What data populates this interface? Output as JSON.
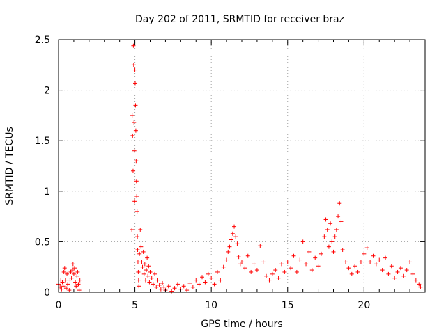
{
  "chart_data": {
    "type": "scatter",
    "title": "Day 202 of 2011, SRMTID for receiver braz",
    "xlabel": "GPS time / hours",
    "ylabel": "SRMTID / TECUs",
    "xlim": [
      0,
      24
    ],
    "ylim": [
      0,
      2.5
    ],
    "xticks": [
      0,
      5,
      10,
      15,
      20
    ],
    "yticks": [
      0,
      0.5,
      1,
      1.5,
      2,
      2.5
    ],
    "xtick_labels": [
      "0",
      "5",
      "10",
      "15",
      "20"
    ],
    "ytick_labels": [
      "0",
      "0.5",
      "1",
      "1.5",
      "2",
      "2.5"
    ],
    "grid": true,
    "marker": "plus",
    "color": "#ff0000",
    "series": [
      {
        "name": "SRMTID",
        "points": [
          [
            0.0,
            0.08
          ],
          [
            0.1,
            0.05
          ],
          [
            0.15,
            0.12
          ],
          [
            0.2,
            0.03
          ],
          [
            0.25,
            0.1
          ],
          [
            0.3,
            0.06
          ],
          [
            0.35,
            0.2
          ],
          [
            0.4,
            0.24
          ],
          [
            0.45,
            0.12
          ],
          [
            0.5,
            0.04
          ],
          [
            0.55,
            0.18
          ],
          [
            0.6,
            0.08
          ],
          [
            0.7,
            0.02
          ],
          [
            0.75,
            0.12
          ],
          [
            0.8,
            0.2
          ],
          [
            0.85,
            0.14
          ],
          [
            0.9,
            0.22
          ],
          [
            0.95,
            0.28
          ],
          [
            1.0,
            0.18
          ],
          [
            1.05,
            0.24
          ],
          [
            1.1,
            0.1
          ],
          [
            1.15,
            0.06
          ],
          [
            1.2,
            0.16
          ],
          [
            1.25,
            0.2
          ],
          [
            1.3,
            0.08
          ],
          [
            1.35,
            0.02
          ],
          [
            1.4,
            0.12
          ],
          [
            4.8,
            0.62
          ],
          [
            4.82,
            1.75
          ],
          [
            4.85,
            1.55
          ],
          [
            4.88,
            1.2
          ],
          [
            4.9,
            2.44
          ],
          [
            4.92,
            2.25
          ],
          [
            4.94,
            1.68
          ],
          [
            4.96,
            1.4
          ],
          [
            4.98,
            0.9
          ],
          [
            5.0,
            2.2
          ],
          [
            5.02,
            2.07
          ],
          [
            5.04,
            1.85
          ],
          [
            5.06,
            1.6
          ],
          [
            5.08,
            1.3
          ],
          [
            5.1,
            1.1
          ],
          [
            5.12,
            0.95
          ],
          [
            5.14,
            0.8
          ],
          [
            5.16,
            0.55
          ],
          [
            5.18,
            0.42
          ],
          [
            5.2,
            0.3
          ],
          [
            5.22,
            0.2
          ],
          [
            5.24,
            0.12
          ],
          [
            5.26,
            0.06
          ],
          [
            5.3,
            0.38
          ],
          [
            5.35,
            0.62
          ],
          [
            5.4,
            0.45
          ],
          [
            5.45,
            0.3
          ],
          [
            5.5,
            0.25
          ],
          [
            5.55,
            0.4
          ],
          [
            5.6,
            0.18
          ],
          [
            5.65,
            0.28
          ],
          [
            5.7,
            0.12
          ],
          [
            5.75,
            0.22
          ],
          [
            5.8,
            0.34
          ],
          [
            5.85,
            0.16
          ],
          [
            5.9,
            0.26
          ],
          [
            5.95,
            0.1
          ],
          [
            6.0,
            0.2
          ],
          [
            6.1,
            0.14
          ],
          [
            6.2,
            0.08
          ],
          [
            6.3,
            0.18
          ],
          [
            6.4,
            0.05
          ],
          [
            6.5,
            0.12
          ],
          [
            6.6,
            0.07
          ],
          [
            6.7,
            0.03
          ],
          [
            6.8,
            0.09
          ],
          [
            6.9,
            0.05
          ],
          [
            7.0,
            0.02
          ],
          [
            7.2,
            0.06
          ],
          [
            7.4,
            0.01
          ],
          [
            7.6,
            0.04
          ],
          [
            7.8,
            0.08
          ],
          [
            8.0,
            0.03
          ],
          [
            8.2,
            0.06
          ],
          [
            8.4,
            0.02
          ],
          [
            8.6,
            0.09
          ],
          [
            8.8,
            0.05
          ],
          [
            9.0,
            0.12
          ],
          [
            9.2,
            0.08
          ],
          [
            9.4,
            0.15
          ],
          [
            9.6,
            0.1
          ],
          [
            9.8,
            0.18
          ],
          [
            10.0,
            0.14
          ],
          [
            10.2,
            0.08
          ],
          [
            10.4,
            0.2
          ],
          [
            10.6,
            0.12
          ],
          [
            10.8,
            0.25
          ],
          [
            11.0,
            0.32
          ],
          [
            11.1,
            0.4
          ],
          [
            11.2,
            0.45
          ],
          [
            11.3,
            0.52
          ],
          [
            11.4,
            0.58
          ],
          [
            11.5,
            0.65
          ],
          [
            11.6,
            0.55
          ],
          [
            11.7,
            0.48
          ],
          [
            11.8,
            0.35
          ],
          [
            11.9,
            0.28
          ],
          [
            12.0,
            0.3
          ],
          [
            12.2,
            0.24
          ],
          [
            12.4,
            0.36
          ],
          [
            12.6,
            0.2
          ],
          [
            12.8,
            0.28
          ],
          [
            13.0,
            0.22
          ],
          [
            13.2,
            0.46
          ],
          [
            13.4,
            0.3
          ],
          [
            13.6,
            0.16
          ],
          [
            13.8,
            0.12
          ],
          [
            14.0,
            0.18
          ],
          [
            14.2,
            0.22
          ],
          [
            14.4,
            0.14
          ],
          [
            14.6,
            0.28
          ],
          [
            14.8,
            0.2
          ],
          [
            15.0,
            0.3
          ],
          [
            15.2,
            0.24
          ],
          [
            15.4,
            0.36
          ],
          [
            15.6,
            0.2
          ],
          [
            15.8,
            0.32
          ],
          [
            16.0,
            0.5
          ],
          [
            16.2,
            0.28
          ],
          [
            16.4,
            0.4
          ],
          [
            16.6,
            0.22
          ],
          [
            16.8,
            0.34
          ],
          [
            17.0,
            0.26
          ],
          [
            17.2,
            0.38
          ],
          [
            17.4,
            0.55
          ],
          [
            17.5,
            0.72
          ],
          [
            17.6,
            0.62
          ],
          [
            17.7,
            0.45
          ],
          [
            17.8,
            0.68
          ],
          [
            17.9,
            0.5
          ],
          [
            18.0,
            0.4
          ],
          [
            18.1,
            0.55
          ],
          [
            18.2,
            0.62
          ],
          [
            18.3,
            0.75
          ],
          [
            18.4,
            0.88
          ],
          [
            18.5,
            0.7
          ],
          [
            18.6,
            0.42
          ],
          [
            18.8,
            0.3
          ],
          [
            19.0,
            0.24
          ],
          [
            19.2,
            0.18
          ],
          [
            19.4,
            0.26
          ],
          [
            19.6,
            0.2
          ],
          [
            19.8,
            0.3
          ],
          [
            20.0,
            0.38
          ],
          [
            20.2,
            0.44
          ],
          [
            20.4,
            0.3
          ],
          [
            20.6,
            0.36
          ],
          [
            20.8,
            0.28
          ],
          [
            21.0,
            0.32
          ],
          [
            21.2,
            0.22
          ],
          [
            21.4,
            0.34
          ],
          [
            21.6,
            0.18
          ],
          [
            21.8,
            0.26
          ],
          [
            22.0,
            0.14
          ],
          [
            22.2,
            0.2
          ],
          [
            22.4,
            0.24
          ],
          [
            22.6,
            0.16
          ],
          [
            22.8,
            0.22
          ],
          [
            23.0,
            0.3
          ],
          [
            23.2,
            0.18
          ],
          [
            23.4,
            0.12
          ],
          [
            23.6,
            0.08
          ],
          [
            23.7,
            0.05
          ]
        ]
      }
    ]
  }
}
